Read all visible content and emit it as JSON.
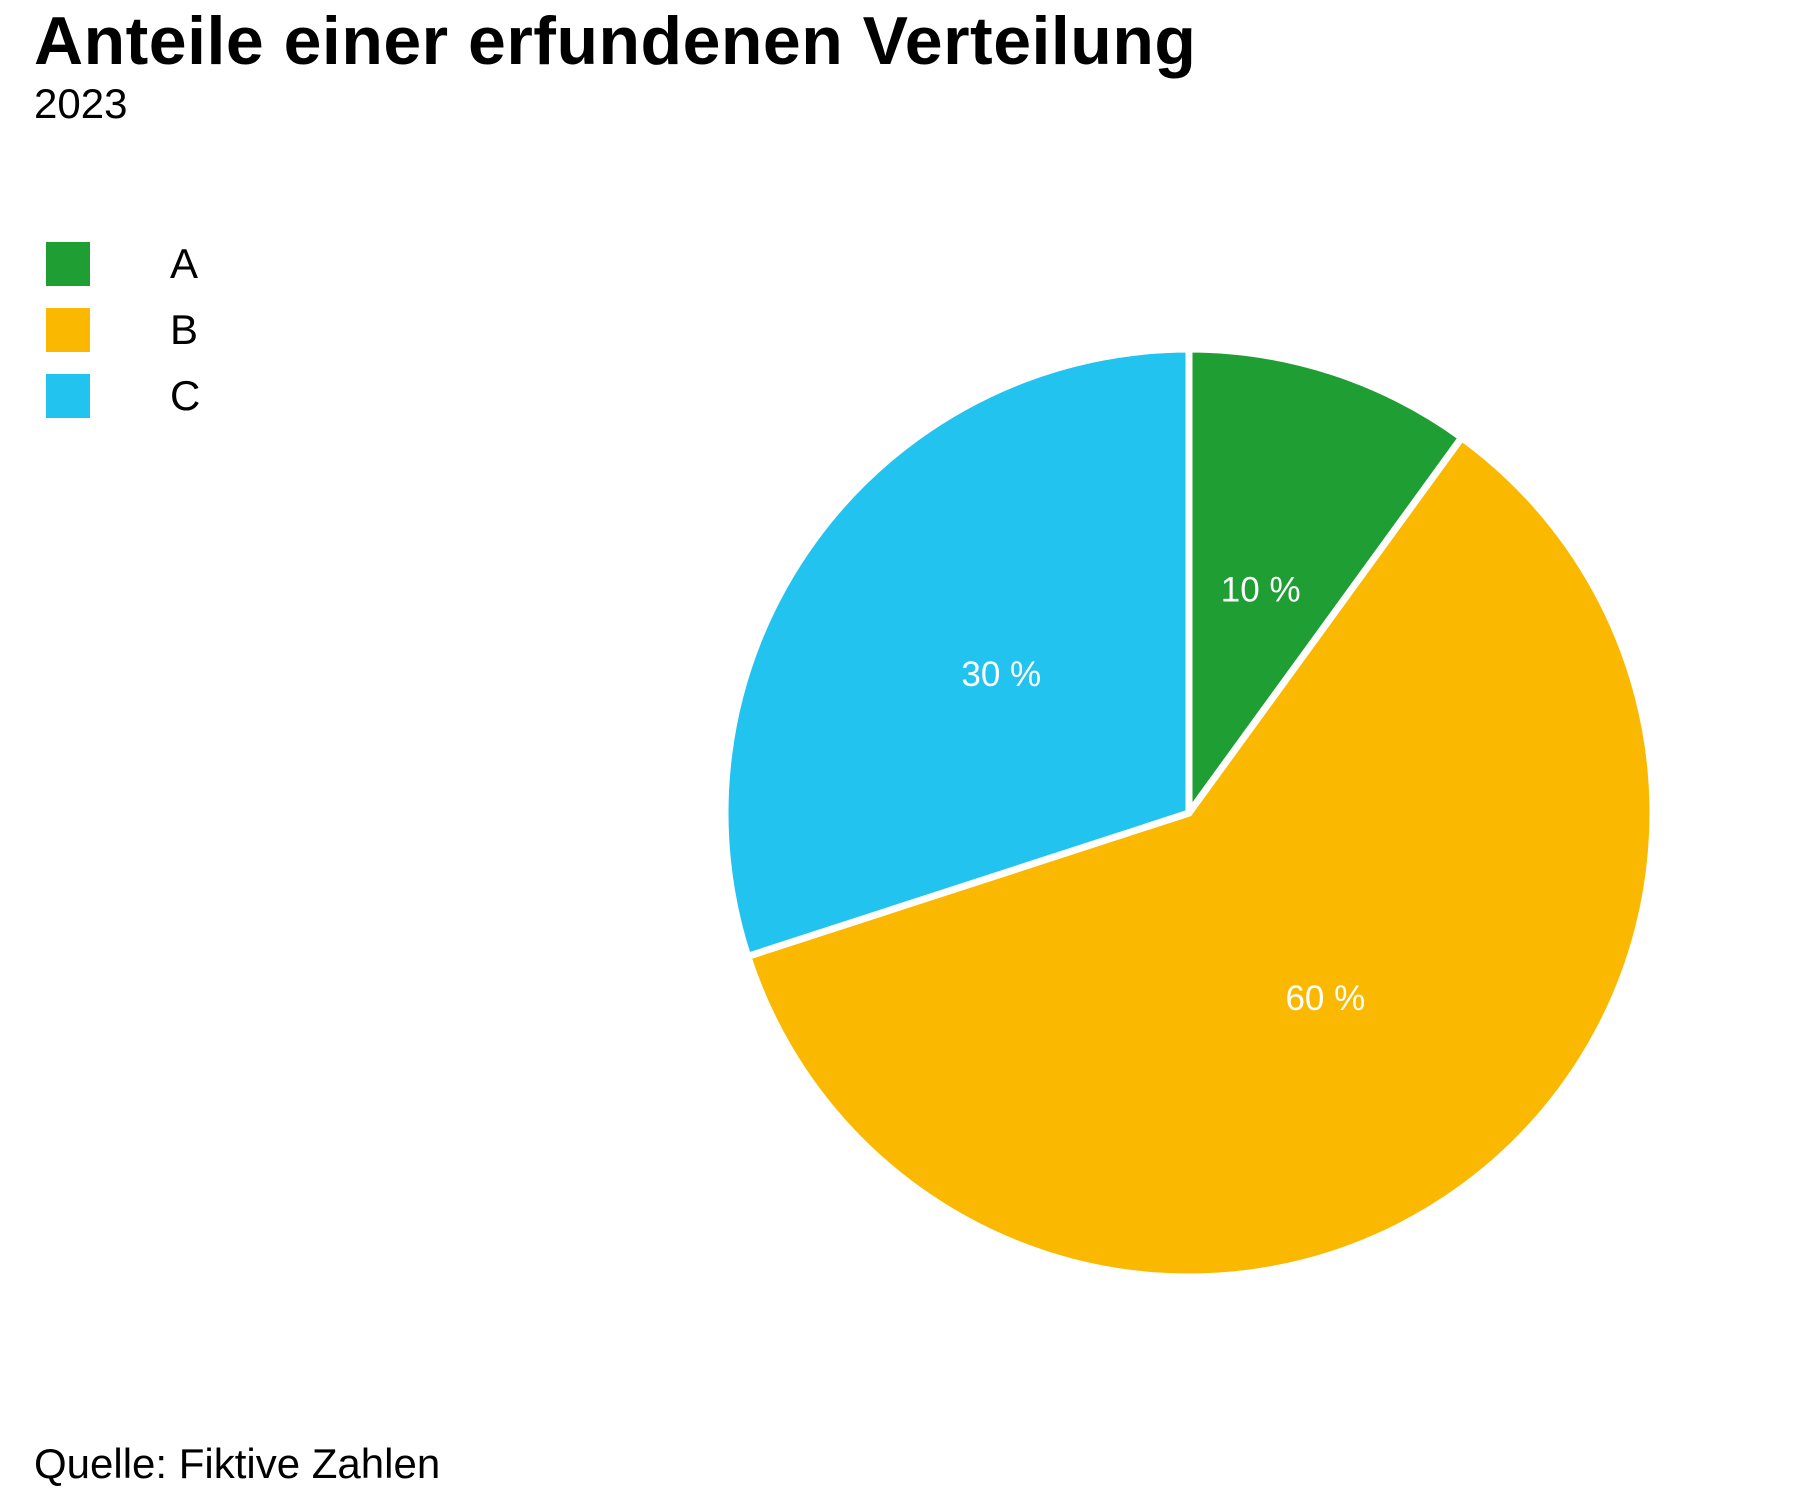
{
  "chart_data": {
    "type": "pie",
    "title": "Anteile einer erfundenen Verteilung",
    "subtitle": "2023",
    "source": "Quelle: Fiktive Zahlen",
    "legend_position": "top-left",
    "start_angle": "top, clockwise",
    "slices": [
      {
        "label": "A",
        "value": 10,
        "data_label": "10 %",
        "color": "#1f9e34"
      },
      {
        "label": "B",
        "value": 60,
        "data_label": "60 %",
        "color": "#fab900"
      },
      {
        "label": "C",
        "value": 30,
        "data_label": "30 %",
        "color": "#23c3f0"
      }
    ]
  }
}
